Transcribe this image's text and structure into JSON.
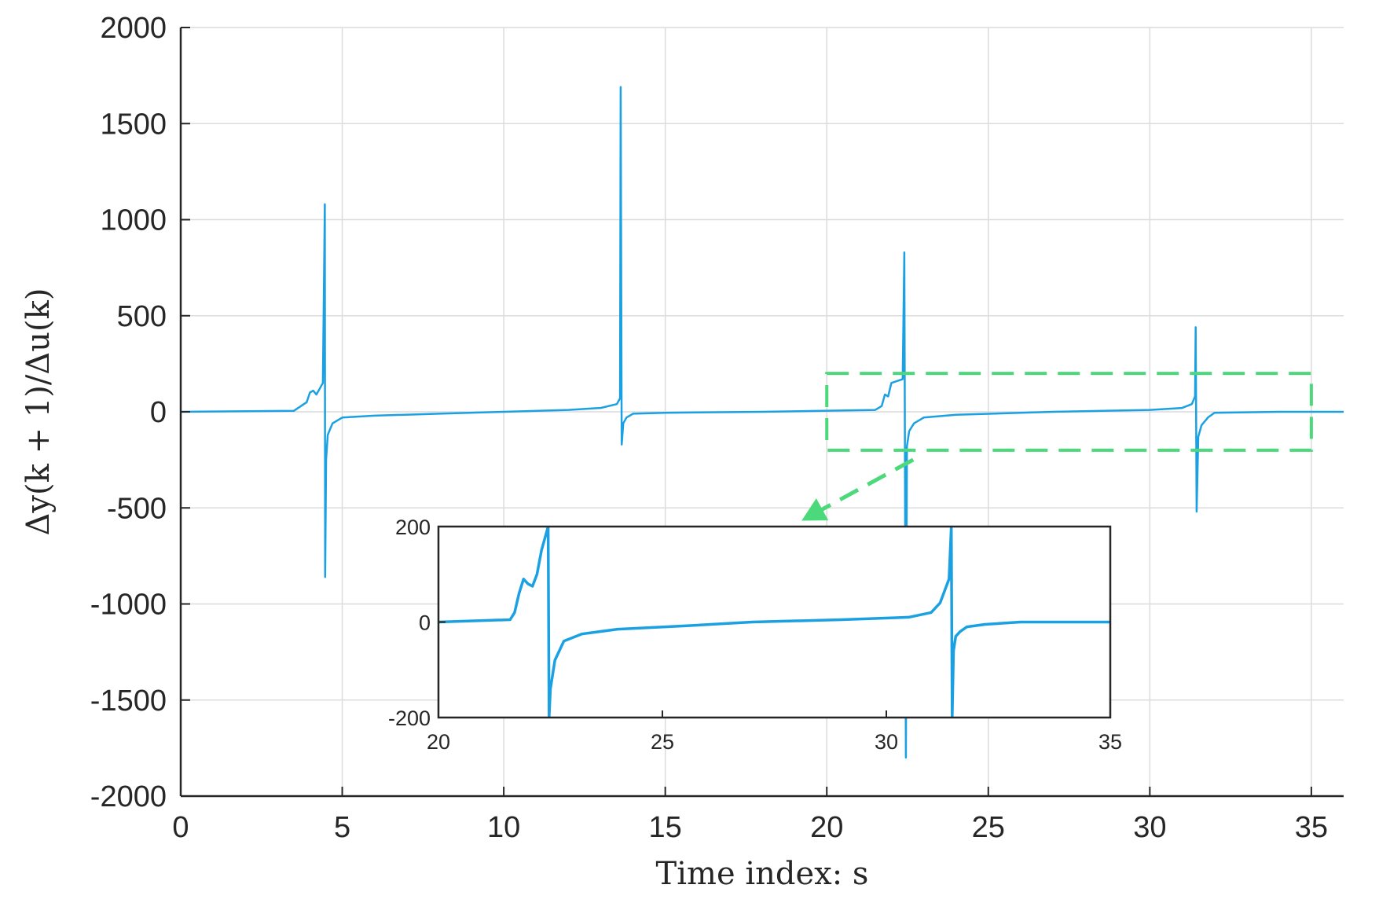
{
  "chart_data": [
    {
      "type": "line",
      "title": "",
      "xlabel": "Time index: s",
      "ylabel": "Δy(k + 1)/Δu(k)",
      "xlim": [
        0,
        36
      ],
      "ylim": [
        -2000,
        2000
      ],
      "xticks": [
        0,
        5,
        10,
        15,
        20,
        25,
        30,
        35
      ],
      "yticks": [
        -2000,
        -1500,
        -1000,
        -500,
        0,
        500,
        1000,
        1500,
        2000
      ],
      "xtick_labels": [
        "0",
        "5",
        "10",
        "15",
        "20",
        "25",
        "30",
        "35"
      ],
      "ytick_labels": [
        "-2000",
        "-1500",
        "-1000",
        "-500",
        "0",
        "500",
        "1000",
        "1500",
        "2000"
      ],
      "grid": true,
      "series": [
        {
          "color": "#1ba1e2",
          "x": [
            0,
            3.5,
            3.9,
            4.0,
            4.1,
            4.2,
            4.3,
            4.4,
            4.46,
            4.47,
            4.5,
            4.55,
            4.7,
            5.0,
            6,
            8,
            10,
            12,
            13.0,
            13.5,
            13.6,
            13.62,
            13.65,
            13.7,
            13.8,
            14.0,
            15,
            18,
            21.5,
            21.7,
            21.8,
            21.9,
            22.0,
            22.35,
            22.4,
            22.45,
            22.48,
            22.55,
            22.7,
            23.0,
            24,
            27,
            30,
            31.0,
            31.3,
            31.4,
            31.42,
            31.45,
            31.5,
            31.6,
            31.8,
            32.0,
            34,
            36
          ],
          "y": [
            0,
            5,
            50,
            100,
            110,
            90,
            120,
            150,
            1080,
            -860,
            -250,
            -120,
            -60,
            -30,
            -20,
            -10,
            0,
            10,
            20,
            40,
            70,
            1690,
            -170,
            -60,
            -30,
            -10,
            -5,
            0,
            10,
            30,
            90,
            80,
            150,
            170,
            830,
            -1800,
            -180,
            -100,
            -60,
            -30,
            -15,
            0,
            10,
            20,
            40,
            80,
            440,
            -520,
            -130,
            -70,
            -30,
            -5,
            0,
            0
          ]
        }
      ],
      "annotations": {
        "zoom_box": {
          "x": [
            20,
            35
          ],
          "y": [
            -200,
            200
          ],
          "color": "#4cd97b",
          "style": "dashed"
        }
      }
    },
    {
      "type": "line",
      "title": "",
      "xlabel": "",
      "ylabel": "",
      "xlim": [
        20,
        35
      ],
      "ylim": [
        -200,
        200
      ],
      "xticks": [
        20,
        25,
        30,
        35
      ],
      "yticks": [
        -200,
        0,
        200
      ],
      "xtick_labels": [
        "20",
        "25",
        "30",
        "35"
      ],
      "ytick_labels": [
        "-200",
        "0",
        "200"
      ],
      "grid": false,
      "series": [
        {
          "color": "#1ba1e2",
          "x": [
            20,
            21.6,
            21.7,
            21.8,
            21.9,
            22.0,
            22.1,
            22.2,
            22.3,
            22.45,
            22.47,
            22.5,
            22.6,
            22.8,
            23.2,
            24,
            25.5,
            27,
            29,
            30.5,
            31.0,
            31.2,
            31.4,
            31.45,
            31.47,
            31.5,
            31.55,
            31.65,
            31.8,
            32.2,
            33,
            35
          ],
          "y": [
            0,
            5,
            20,
            60,
            90,
            80,
            75,
            100,
            150,
            200,
            -200,
            -140,
            -80,
            -40,
            -25,
            -15,
            -8,
            0,
            5,
            10,
            20,
            40,
            90,
            200,
            -200,
            -60,
            -30,
            -20,
            -10,
            -5,
            0,
            0
          ]
        }
      ]
    }
  ]
}
